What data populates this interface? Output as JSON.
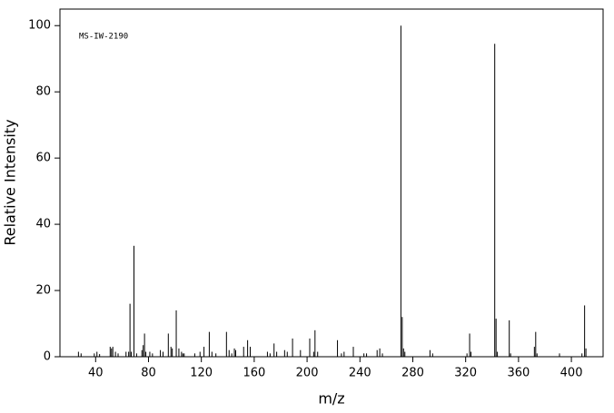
{
  "chart_data": {
    "type": "stem",
    "annotation": "MS-IW-2190",
    "xlabel": "m/z",
    "ylabel": "Relative Intensity",
    "x": [
      27,
      29,
      39,
      41,
      43,
      51,
      52,
      53,
      55,
      57,
      63,
      65,
      66,
      67,
      69,
      71,
      75,
      76,
      77,
      78,
      81,
      83,
      89,
      91,
      95,
      97,
      98,
      101,
      103,
      105,
      106,
      107,
      115,
      119,
      122,
      126,
      128,
      131,
      139,
      141,
      143,
      145,
      146,
      152,
      155,
      157,
      170,
      172,
      175,
      177,
      183,
      185,
      189,
      195,
      202,
      205,
      206,
      208,
      223,
      226,
      228,
      235,
      243,
      245,
      253,
      255,
      257,
      271,
      272,
      273,
      274,
      293,
      295,
      321,
      323,
      324,
      342,
      343,
      344,
      353,
      354,
      372,
      373,
      374,
      391,
      408,
      410,
      411
    ],
    "values": [
      1.5,
      1,
      1,
      1.5,
      0.8,
      3,
      2.5,
      3,
      1.5,
      1,
      1.5,
      1.5,
      16,
      1.5,
      33.5,
      1,
      2,
      3.5,
      7,
      1.5,
      1.5,
      1,
      2,
      1.5,
      7,
      3,
      2.5,
      14,
      2.5,
      1.5,
      1,
      1,
      1,
      1.5,
      3,
      7.5,
      1.5,
      1,
      7.5,
      2,
      1,
      2.5,
      2,
      3,
      5,
      3,
      1.5,
      1,
      4,
      1.5,
      2,
      1.5,
      5.5,
      2,
      5.5,
      1.5,
      8,
      1.5,
      5,
      1,
      1.5,
      3,
      1,
      1,
      2,
      2.5,
      1,
      100,
      12,
      2.5,
      1.5,
      2,
      1,
      1,
      7,
      1.5,
      94.5,
      11.5,
      1.5,
      11,
      1,
      3,
      7.5,
      1,
      1,
      1,
      15.5,
      2.5
    ],
    "color": "#000000",
    "xlim": [
      13,
      424
    ],
    "ylim": [
      0,
      105
    ],
    "xticks": [
      40,
      80,
      120,
      160,
      200,
      240,
      280,
      320,
      360,
      400
    ],
    "yticks": [
      0,
      20,
      40,
      60,
      80,
      100
    ]
  }
}
